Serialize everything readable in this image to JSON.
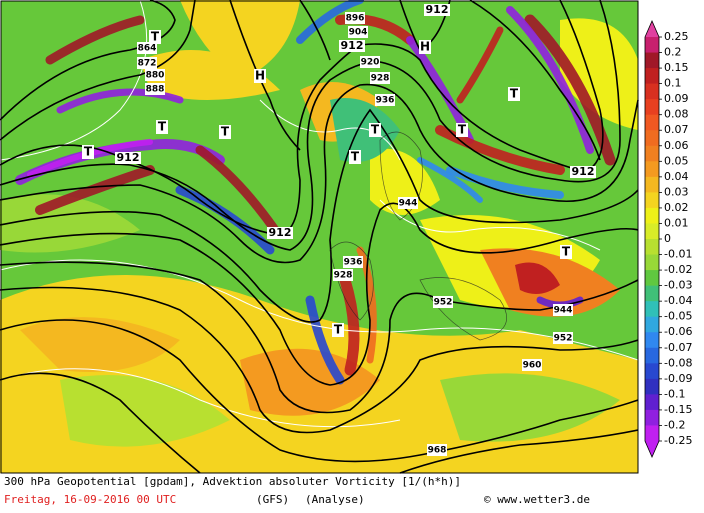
{
  "map": {
    "legend": {
      "labels": [
        "0.25",
        "0.2",
        "0.15",
        "0.1",
        "0.09",
        "0.08",
        "0.07",
        "0.06",
        "0.05",
        "0.04",
        "0.03",
        "0.02",
        "0.01",
        "0",
        "-0.01",
        "-0.02",
        "-0.03",
        "-0.04",
        "-0.05",
        "-0.06",
        "-0.07",
        "-0.08",
        "-0.09",
        "-0.1",
        "-0.15",
        "-0.2",
        "-0.25"
      ],
      "colors": [
        "#c8206e",
        "#a01828",
        "#c02020",
        "#d83020",
        "#e84020",
        "#f05822",
        "#f06c20",
        "#f08020",
        "#f49a20",
        "#f4b820",
        "#f4d420",
        "#eef018",
        "#d8ec28",
        "#b8e030",
        "#98d838",
        "#60c840",
        "#40c078",
        "#30c0b8",
        "#30a8e0",
        "#3088f0",
        "#2868e0",
        "#2848d0",
        "#3030c0",
        "#6020d0",
        "#9020e0",
        "#c020f0"
      ],
      "top_color": "#e040a0",
      "bottom_color": "#c020f0"
    },
    "contour_labels": [
      "864",
      "872",
      "880",
      "888",
      "896",
      "904",
      "912",
      "920",
      "928",
      "936",
      "944",
      "952",
      "960",
      "968",
      "912",
      "912",
      "912",
      "912",
      "944",
      "952",
      "936",
      "928"
    ],
    "pressure_centers": [
      "T",
      "T",
      "T",
      "T",
      "T",
      "T",
      "T",
      "T",
      "T",
      "T",
      "H",
      "H"
    ],
    "caption": {
      "line1": "300 hPa Geopotential [gpdam], Advektion absoluter Vorticity [1/(h*h)]",
      "date": "Freitag, 16-09-2016  00 UTC",
      "model": "(GFS)",
      "run": "(Analyse)",
      "credit": "© www.wetter3.de"
    }
  }
}
